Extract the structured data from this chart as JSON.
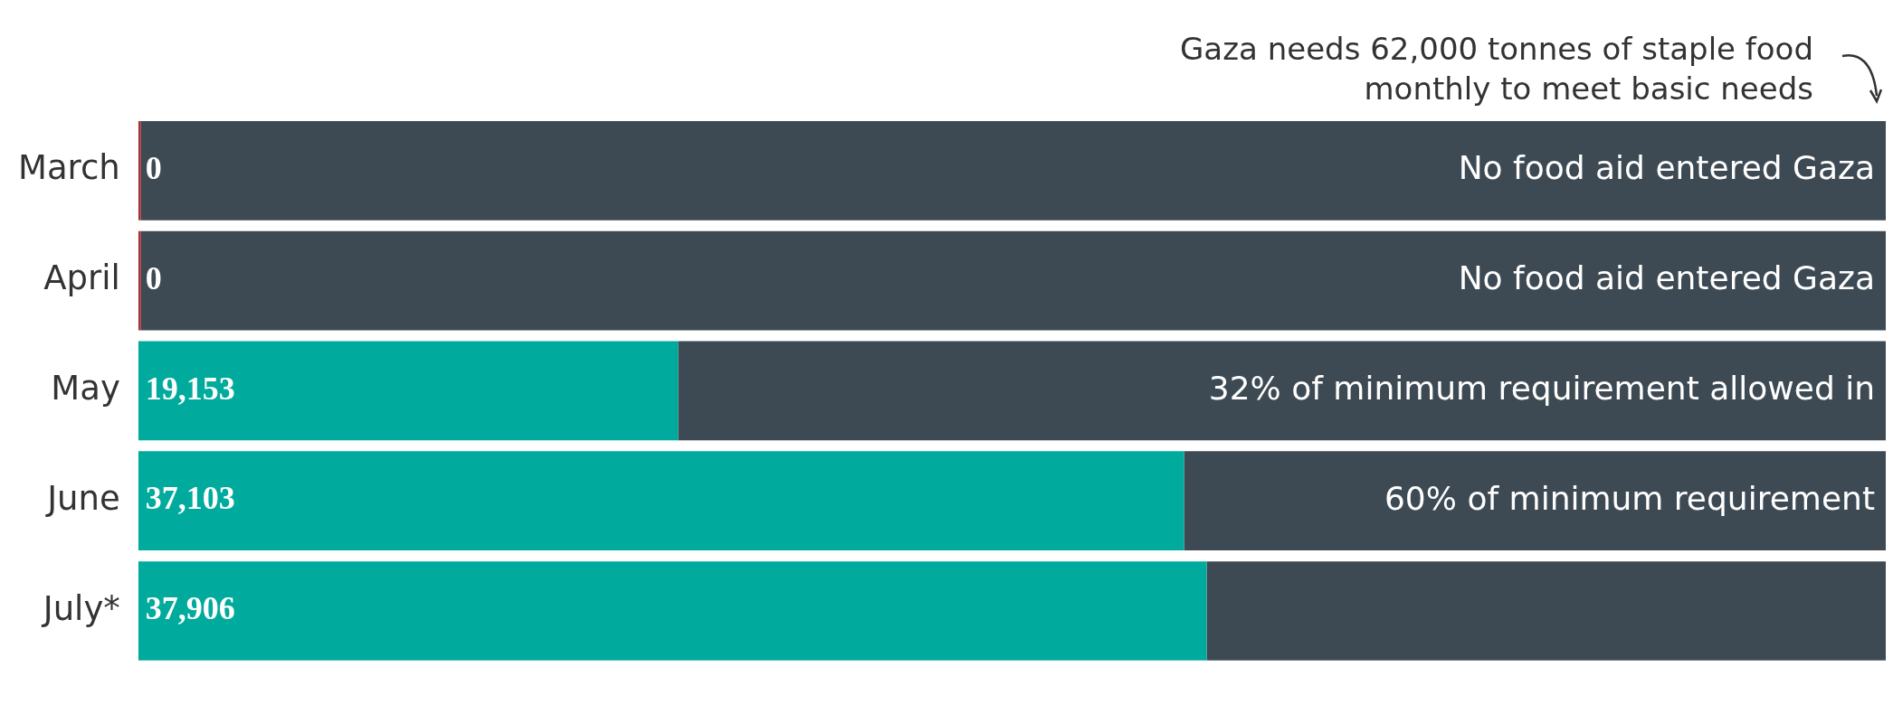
{
  "chart_data": {
    "type": "bar",
    "orientation": "horizontal",
    "stacked": true,
    "categories": [
      "March",
      "April",
      "May",
      "June",
      "July*"
    ],
    "series": [
      {
        "colors": [
          "#a8323a",
          "#a8323a",
          "#00aa9c",
          "#00aa9c",
          "#00aa9c"
        ],
        "values": [
          0,
          0,
          19153,
          37103,
          37906
        ],
        "value_labels": [
          "0",
          "0",
          "19,153",
          "37,103",
          "37,906"
        ]
      },
      {
        "color": "#3e4a53",
        "values": [
          62000,
          62000,
          42847,
          24897,
          24094
        ]
      }
    ],
    "xlim": [
      0,
      62000
    ],
    "tick_labels": "y",
    "grid": false,
    "legend": false,
    "annotations": [
      "Gaza needs 62,000 tonnes of staple food monthly to meet basic needs",
      "No food aid entered Gaza",
      "No food aid entered Gaza",
      "32% of minimum requirement allowed in",
      "60% of minimum requirement"
    ]
  }
}
